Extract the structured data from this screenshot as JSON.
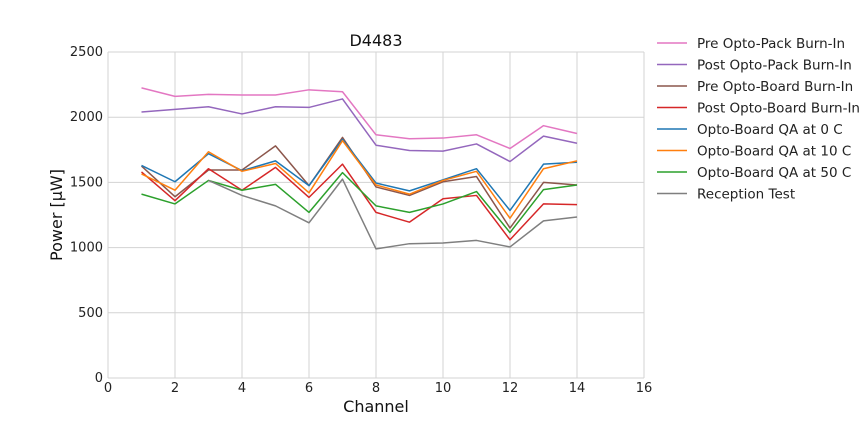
{
  "chart_data": {
    "type": "line",
    "title": "D4483",
    "xlabel": "Channel",
    "ylabel": "Power [μW]",
    "xlim": [
      0,
      16
    ],
    "ylim": [
      0,
      2500
    ],
    "xticks": [
      0,
      2,
      4,
      6,
      8,
      10,
      12,
      14,
      16
    ],
    "yticks": [
      0,
      500,
      1000,
      1500,
      2000,
      2500
    ],
    "grid": true,
    "legend_position": "outside-right-top",
    "x": [
      1,
      2,
      3,
      4,
      5,
      6,
      7,
      8,
      9,
      10,
      11,
      12,
      13,
      14
    ],
    "series": [
      {
        "name": "Pre Opto-Pack Burn-In",
        "color": "#e377c2",
        "values": [
          2225,
          2160,
          2175,
          2170,
          2170,
          2210,
          2195,
          1865,
          1835,
          1840,
          1865,
          1760,
          1935,
          1875
        ]
      },
      {
        "name": "Post Opto-Pack Burn-In",
        "color": "#9467bd",
        "values": [
          2040,
          2060,
          2080,
          2025,
          2080,
          2075,
          2140,
          1785,
          1745,
          1740,
          1795,
          1660,
          1855,
          1800
        ]
      },
      {
        "name": "Pre Opto-Board Burn-In",
        "color": "#8c564b",
        "values": [
          1625,
          1390,
          1595,
          1595,
          1780,
          1475,
          1845,
          1465,
          1400,
          1505,
          1545,
          1150,
          1500,
          1480
        ]
      },
      {
        "name": "Post Opto-Board Burn-In",
        "color": "#d62728",
        "values": [
          1580,
          1360,
          1605,
          1440,
          1615,
          1385,
          1640,
          1270,
          1195,
          1375,
          1400,
          1060,
          1335,
          1330
        ]
      },
      {
        "name": "Opto-Board QA at 0 C",
        "color": "#1f77b4",
        "values": [
          1630,
          1505,
          1720,
          1590,
          1665,
          1475,
          1830,
          1495,
          1435,
          1520,
          1605,
          1285,
          1640,
          1655
        ]
      },
      {
        "name": "Opto-Board QA at 10 C",
        "color": "#ff7f0e",
        "values": [
          1565,
          1440,
          1735,
          1585,
          1645,
          1420,
          1820,
          1480,
          1410,
          1515,
          1585,
          1225,
          1605,
          1665
        ]
      },
      {
        "name": "Opto-Board QA at 50 C",
        "color": "#2ca02c",
        "values": [
          1410,
          1335,
          1515,
          1440,
          1485,
          1270,
          1575,
          1320,
          1270,
          1335,
          1430,
          1115,
          1445,
          1480
        ]
      },
      {
        "name": "Reception Test",
        "color": "#7f7f7f",
        "values": [
          null,
          null,
          1515,
          1400,
          1320,
          1190,
          1525,
          990,
          1030,
          1035,
          1055,
          1005,
          1205,
          1235
        ]
      }
    ]
  }
}
